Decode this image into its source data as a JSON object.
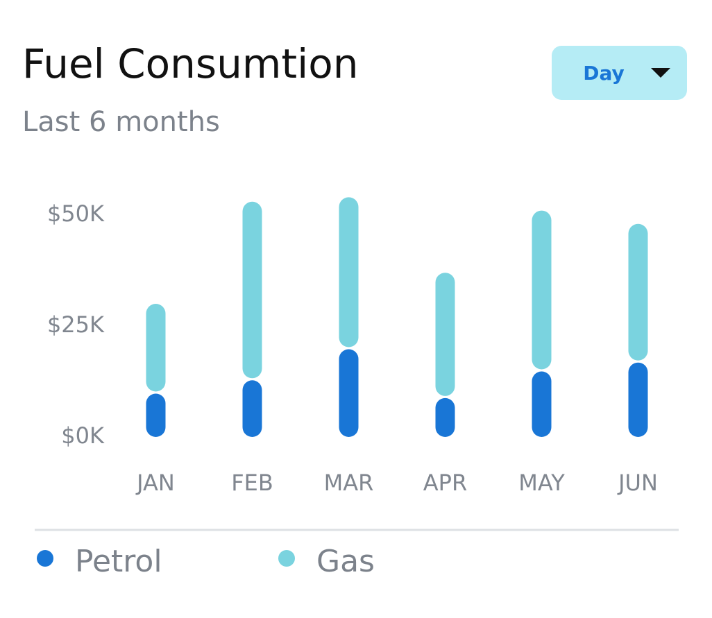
{
  "chart_data": {
    "type": "stacked-bar",
    "title": "Fuel Consumtion",
    "subtitle": "Last 6 months",
    "dropdown": "Day",
    "categories": [
      "JAN",
      "FEB",
      "MAR",
      "APR",
      "MAY",
      "JUN"
    ],
    "series": [
      {
        "name": "Petrol",
        "color": "#1976d6",
        "values": [
          10,
          13,
          20,
          9,
          15,
          17
        ]
      },
      {
        "name": "Gas",
        "color": "#7ad3df",
        "values": [
          20,
          40,
          34,
          28,
          36,
          31
        ]
      }
    ],
    "ylim": [
      0,
      55
    ],
    "yticks": [
      {
        "value": 0,
        "label": "$0K"
      },
      {
        "value": 25,
        "label": "$25K"
      },
      {
        "value": 50,
        "label": "$50K"
      }
    ]
  }
}
